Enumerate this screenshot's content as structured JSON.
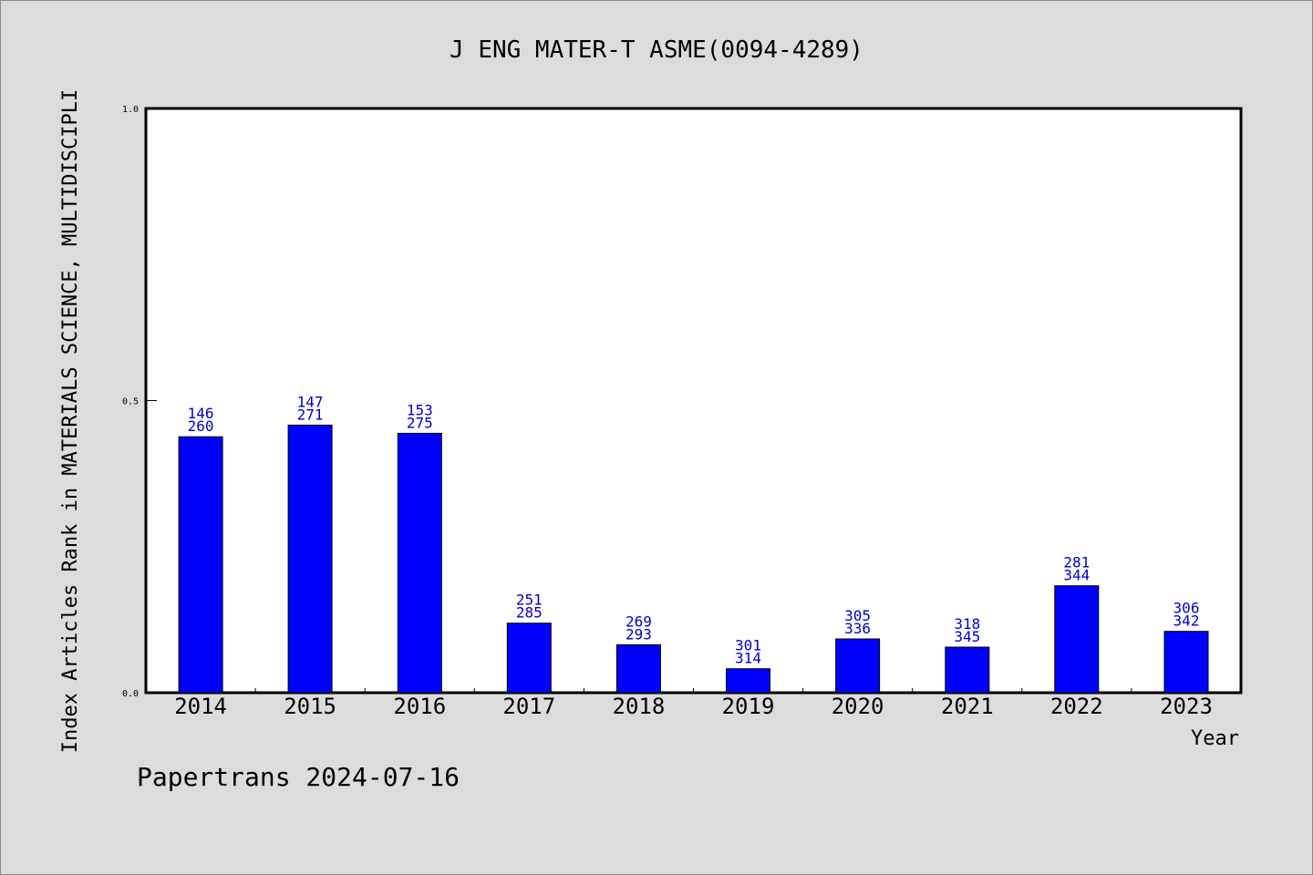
{
  "chart_data": {
    "type": "bar",
    "title": "J ENG MATER-T ASME(0094-4289)",
    "xlabel": "Year",
    "ylabel": "Index Articles Rank in MATERIALS SCIENCE, MULTIDISCIPLI",
    "ylim": [
      0,
      1.0
    ],
    "yticks": [
      "0.0",
      "0.5",
      "1.0"
    ],
    "categories": [
      "2014",
      "2015",
      "2016",
      "2017",
      "2018",
      "2019",
      "2020",
      "2021",
      "2022",
      "2023"
    ],
    "values": [
      0.438,
      0.458,
      0.444,
      0.119,
      0.082,
      0.041,
      0.092,
      0.078,
      0.183,
      0.105
    ],
    "labels_top": [
      "146",
      "147",
      "153",
      "251",
      "269",
      "301",
      "305",
      "318",
      "281",
      "306"
    ],
    "labels_bottom": [
      "260",
      "271",
      "275",
      "285",
      "293",
      "314",
      "336",
      "345",
      "344",
      "342"
    ],
    "grid": false,
    "colors": {
      "bar": "#0000ff",
      "label": "#0000c8"
    }
  },
  "footer": "Papertrans 2024-07-16"
}
